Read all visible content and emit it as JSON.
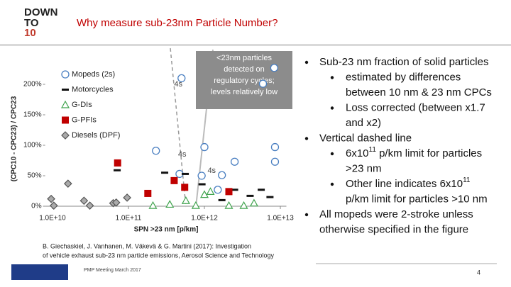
{
  "slide": {
    "logo": [
      "DOWN",
      "TO",
      "10"
    ],
    "title": "Why measure sub-23nm Particle Number?",
    "note": [
      "<23nm particles",
      "detected on",
      "regulatory cycles;",
      "levels relatively low"
    ],
    "bullets": [
      {
        "level": 1,
        "lines": [
          "Sub-23 nm fraction of solid particles"
        ]
      },
      {
        "level": 2,
        "lines": [
          "estimated by differences",
          "between 10 nm & 23 nm CPCs"
        ]
      },
      {
        "level": 2,
        "lines": [
          "Loss corrected (between x1.7",
          "and x2)"
        ]
      },
      {
        "level": 1,
        "lines": [
          "Vertical dashed line"
        ]
      },
      {
        "level": 2,
        "lines": [
          {
            "pre": "6x10",
            "sup": "11",
            "post": " p/km limit for particles"
          },
          ">23 nm"
        ]
      },
      {
        "level": 2,
        "lines": [
          {
            "pre": "Other line indicates 6x10",
            "sup": "11"
          },
          "p/km limit for particles >10 nm"
        ]
      },
      {
        "level": 1,
        "lines": [
          "All mopeds were 2-stroke unless",
          "otherwise specified in the figure"
        ]
      }
    ],
    "citation": [
      "B. Giechaskiel, J. Vanhanen, M. Väkevä & G. Martini (2017): Investigation",
      "of vehicle exhaust sub-23 nm particle emissions, Aerosol Science and Technology"
    ],
    "footer": "PMP Meeting March 2017",
    "page_number": "4"
  },
  "chart_data": {
    "type": "scatter",
    "x_label": "SPN >23 nm [p/km]",
    "y_label": "(CPC10 - CPC23) / CPC23",
    "log_x": true,
    "xlim": [
      8000000000.0,
      12000000000000.0
    ],
    "xticks": [
      {
        "value": 10000000000.0,
        "label": "1.0E+10"
      },
      {
        "value": 100000000000.0,
        "label": "1.0E+11"
      },
      {
        "value": 1000000000000.0,
        "label": "1.0E+12"
      },
      {
        "value": 10000000000000.0,
        "label": "1.0E+13"
      }
    ],
    "ylim": [
      0,
      225
    ],
    "yticks": [
      {
        "value": 0,
        "label": "0%"
      },
      {
        "value": 50,
        "label": "50%"
      },
      {
        "value": 100,
        "label": "100%"
      },
      {
        "value": 150,
        "label": "150%"
      },
      {
        "value": 200,
        "label": "200%"
      }
    ],
    "annotations": [
      {
        "text": "4s",
        "x": 400000000000.0,
        "y": 200
      },
      {
        "text": "4s",
        "x": 450000000000.0,
        "y": 85
      },
      {
        "text": "4s",
        "x": 1100000000000.0,
        "y": 58
      }
    ],
    "series": [
      {
        "name": "Mopeds (2s)",
        "marker": "circle",
        "color": "#4a7fc1",
        "x": [
          500000000000.0,
          1000000000000.0,
          8300000000000.0,
          5900000000000.0,
          8500000000000.0,
          8500000000000.0,
          2500000000000.0,
          1700000000000.0,
          1500000000000.0,
          920000000000.0,
          470000000000.0,
          230000000000.0
        ],
        "y": [
          210,
          97,
          227,
          201,
          97,
          73,
          73,
          51,
          27,
          50,
          53,
          91
        ]
      },
      {
        "name": "Motorcycles",
        "marker": "dash",
        "color": "#111111",
        "x": [
          71000000000.0,
          300000000000.0,
          560000000000.0,
          930000000000.0,
          2500000000000.0,
          4000000000000.0,
          5600000000000.0,
          7300000000000.0,
          1700000000000.0
        ],
        "y": [
          59,
          55,
          53,
          36,
          27,
          17,
          27,
          15,
          10
        ]
      },
      {
        "name": "G-DIs",
        "marker": "triangle",
        "color": "#3fa34d",
        "x": [
          210000000000.0,
          350000000000.0,
          570000000000.0,
          1000000000000.0,
          1200000000000.0,
          2100000000000.0,
          3300000000000.0,
          4500000000000.0,
          770000000000.0
        ],
        "y": [
          1,
          3,
          9,
          19,
          24,
          1,
          1,
          5,
          1
        ]
      },
      {
        "name": "G-PFIs",
        "marker": "square",
        "color": "#c00000",
        "x": [
          72000000000.0,
          180000000000.0,
          2100000000000.0,
          550000000000.0,
          400000000000.0
        ],
        "y": [
          71,
          21,
          24,
          31,
          42
        ]
      },
      {
        "name": "Diesels (DPF)",
        "marker": "diamond",
        "color": "#555555",
        "x": [
          9600000000.0,
          10400000000.0,
          16000000000.0,
          31000000000.0,
          63000000000.0,
          69000000000.0,
          96000000000.0,
          26000000000.0
        ],
        "y": [
          12,
          1,
          37,
          1,
          5,
          6,
          14,
          9
        ]
      }
    ]
  }
}
